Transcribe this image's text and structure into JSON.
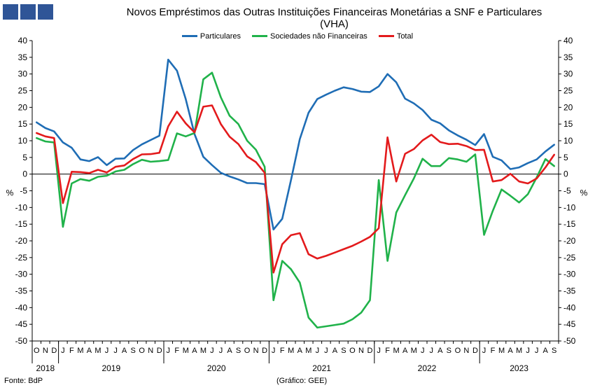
{
  "logo": {
    "icon": "square-blocks-logo"
  },
  "chart_data": {
    "type": "line",
    "title": "Novos Empréstimos das Outras Instituições Financeiras Monetárias a SNF e Particulares",
    "subtitle": "(VHA)",
    "ylabel_left": "%",
    "ylabel_right": "%",
    "ylim": [
      -50,
      40
    ],
    "ytick_step": 5,
    "grid": false,
    "legend_position": "top",
    "month_labels": [
      "O",
      "N",
      "D",
      "J",
      "F",
      "M",
      "A",
      "M",
      "J",
      "J",
      "A",
      "S",
      "O",
      "N",
      "D",
      "J",
      "F",
      "M",
      "A",
      "M",
      "J",
      "J",
      "A",
      "S",
      "O",
      "N",
      "D",
      "J",
      "F",
      "M",
      "A",
      "M",
      "J",
      "J",
      "A",
      "S",
      "O",
      "N",
      "D",
      "J",
      "F",
      "M",
      "A",
      "M",
      "J",
      "J",
      "A",
      "S",
      "O",
      "N",
      "D",
      "J",
      "F",
      "M",
      "A",
      "M",
      "J",
      "J",
      "A",
      "S"
    ],
    "year_labels": [
      {
        "label": "2018",
        "start": 0,
        "end": 2
      },
      {
        "label": "2019",
        "start": 3,
        "end": 14
      },
      {
        "label": "2020",
        "start": 15,
        "end": 26
      },
      {
        "label": "2021",
        "start": 27,
        "end": 38
      },
      {
        "label": "2022",
        "start": 39,
        "end": 50
      },
      {
        "label": "2023",
        "start": 51,
        "end": 59
      }
    ],
    "series": [
      {
        "name": "Particulares",
        "color": "#1f6db5",
        "values": [
          15.5,
          13.8,
          12.8,
          9.5,
          7.9,
          4.4,
          3.9,
          5.1,
          2.7,
          4.6,
          4.7,
          7.2,
          8.9,
          10.2,
          11.5,
          34.3,
          31.0,
          22.5,
          12.0,
          5.2,
          2.7,
          0.4,
          -0.7,
          -1.6,
          -2.7,
          -2.7,
          -3.0,
          -16.6,
          -13.4,
          -1.8,
          10.5,
          18.4,
          22.5,
          23.8,
          25.0,
          26.0,
          25.5,
          24.7,
          24.6,
          26.3,
          30.0,
          27.5,
          22.6,
          21.2,
          19.2,
          16.3,
          15.2,
          13.1,
          11.6,
          10.3,
          8.7,
          12.0,
          5.2,
          4.1,
          1.5,
          2.0,
          3.3,
          4.4,
          6.8,
          8.8
        ]
      },
      {
        "name": "Sociedades não Financeiras",
        "color": "#20b24a",
        "values": [
          10.8,
          9.8,
          9.5,
          -15.8,
          -2.8,
          -1.5,
          -2.0,
          -0.8,
          -0.5,
          0.8,
          1.3,
          3.0,
          4.3,
          3.7,
          3.9,
          4.2,
          12.2,
          11.3,
          12.3,
          28.4,
          30.4,
          23.0,
          17.5,
          15.0,
          10.0,
          7.3,
          2.2,
          -37.8,
          -26.0,
          -28.5,
          -32.5,
          -43.0,
          -46.0,
          -45.6,
          -45.2,
          -44.8,
          -43.5,
          -41.5,
          -37.8,
          -1.8,
          -26.0,
          -11.5,
          -6.3,
          -1.3,
          4.6,
          2.4,
          2.4,
          4.8,
          4.4,
          3.7,
          5.9,
          -18.2,
          -11.0,
          -4.6,
          -6.5,
          -8.5,
          -6.0,
          -1.0,
          4.5,
          2.4
        ]
      },
      {
        "name": "Total",
        "color": "#e31a1c",
        "values": [
          12.3,
          11.3,
          10.8,
          -8.7,
          0.7,
          0.6,
          0.3,
          1.3,
          0.5,
          2.2,
          2.6,
          4.5,
          5.9,
          6.0,
          6.4,
          14.3,
          18.7,
          15.2,
          12.5,
          20.2,
          20.6,
          15.0,
          11.2,
          9.0,
          5.3,
          3.6,
          0.4,
          -29.5,
          -21.0,
          -18.3,
          -17.7,
          -24.0,
          -25.3,
          -24.5,
          -23.5,
          -22.5,
          -21.5,
          -20.2,
          -18.8,
          -16.2,
          11.0,
          -2.2,
          6.1,
          7.5,
          10.1,
          11.8,
          9.6,
          9.0,
          9.1,
          8.4,
          7.2,
          7.3,
          -2.2,
          -1.8,
          0.1,
          -2.2,
          -2.8,
          -1.3,
          2.0,
          5.8
        ]
      }
    ]
  },
  "footer": {
    "source": "Fonte: BdP",
    "credit": "(Gráfico: GEE)"
  }
}
